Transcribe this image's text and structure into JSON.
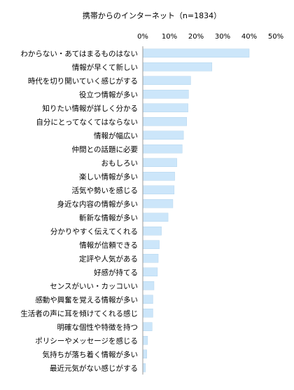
{
  "chart_data": {
    "type": "bar",
    "orientation": "horizontal",
    "title": "携帯からのインターネット（n=1834）",
    "xlabel": "",
    "ylabel": "",
    "xlim": [
      0,
      50
    ],
    "ticks": [
      0,
      10,
      20,
      30,
      40,
      50
    ],
    "tick_labels": [
      "0%",
      "10%",
      "20%",
      "30%",
      "40%",
      "50%"
    ],
    "grid": false,
    "bar_color": "#cce6fa",
    "bar_border_color": "#b5d5ee",
    "categories": [
      "わからない・あてはまるものはない",
      "情報が早くて新しい",
      "時代を切り開いていく感じがする",
      "役立つ情報が多い",
      "知りたい情報が詳しく分かる",
      "自分にとってなくてはならない",
      "情報が幅広い",
      "仲間との話題に必要",
      "おもしろい",
      "楽しい情報が多い",
      "活気や勢いを感じる",
      "身近な内容の情報が多い",
      "斬新な情報が多い",
      "分かりやすく伝えてくれる",
      "情報が信頼できる",
      "定評や人気がある",
      "好感が持てる",
      "センスがいい・カッコいい",
      "感動や興奮を覚える情報が多い",
      "生活者の声に耳を傾けてくれる感じ",
      "明確な個性や特徴を持つ",
      "ポリシーやメッセージを感じる",
      "気持ちが落ち着く情報が多い",
      "最近元気がない感じがする"
    ],
    "values": [
      40.0,
      26.0,
      18.0,
      17.2,
      17.0,
      16.5,
      15.3,
      14.8,
      12.8,
      12.0,
      11.8,
      11.3,
      9.5,
      7.0,
      6.2,
      5.8,
      5.5,
      4.2,
      3.8,
      3.8,
      3.5,
      1.8,
      1.5,
      1.0
    ]
  }
}
